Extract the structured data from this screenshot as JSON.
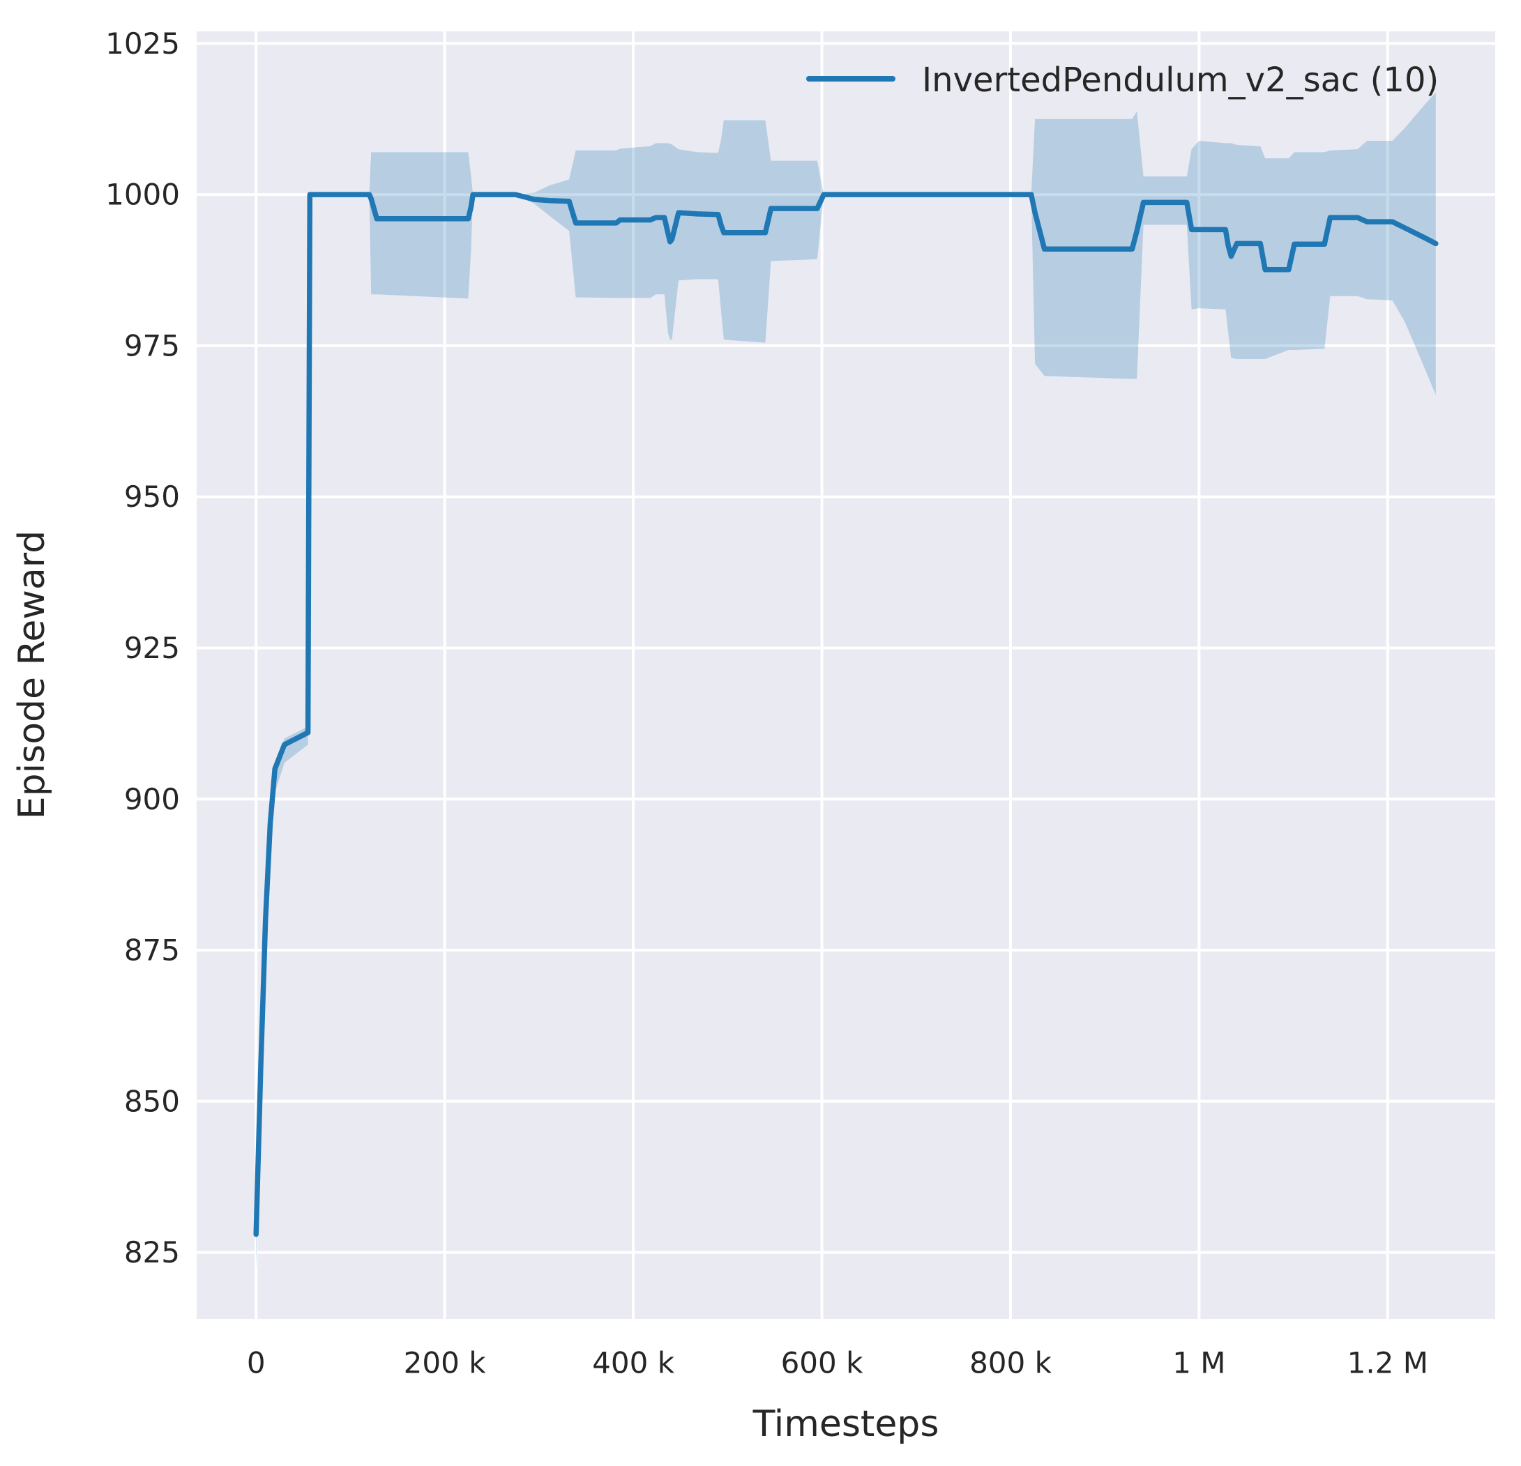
{
  "figure": {
    "background": "#ffffff"
  },
  "chart_data": {
    "type": "line",
    "title": "",
    "xlabel": "Timesteps",
    "ylabel": "Episode Reward",
    "grid": true,
    "grid_color": "#ffffff",
    "plot_background": "#eaeaf2",
    "text_color": "#262626",
    "xlim": [
      -63000,
      1314000
    ],
    "ylim": [
      814,
      1027
    ],
    "x_ticks": [
      {
        "v": 0,
        "label": "0"
      },
      {
        "v": 200000,
        "label": "200 k"
      },
      {
        "v": 400000,
        "label": "400 k"
      },
      {
        "v": 600000,
        "label": "600 k"
      },
      {
        "v": 800000,
        "label": "800 k"
      },
      {
        "v": 1000000,
        "label": "1 M"
      },
      {
        "v": 1200000,
        "label": "1.2 M"
      }
    ],
    "y_ticks": [
      {
        "v": 825,
        "label": "825"
      },
      {
        "v": 850,
        "label": "850"
      },
      {
        "v": 875,
        "label": "875"
      },
      {
        "v": 900,
        "label": "900"
      },
      {
        "v": 925,
        "label": "925"
      },
      {
        "v": 950,
        "label": "950"
      },
      {
        "v": 975,
        "label": "975"
      },
      {
        "v": 1000,
        "label": "1000"
      },
      {
        "v": 1025,
        "label": "1025"
      }
    ],
    "legend": {
      "position": "upper right",
      "frame": false,
      "entries": [
        {
          "label": "InvertedPendulum_v2_sac (10)",
          "color": "#1f77b4"
        }
      ]
    },
    "series": [
      {
        "name": "InvertedPendulum_v2_sac (10)",
        "color": "#1f77b4",
        "band_color": "rgba(31,119,180,0.25)",
        "line_width": 7.5,
        "x": [
          0,
          5000,
          10000,
          15000,
          20000,
          30000,
          55000,
          57000,
          120000,
          122000,
          128000,
          225000,
          228000,
          230000,
          275000,
          295000,
          311000,
          332000,
          339000,
          382000,
          386000,
          418000,
          424000,
          433000,
          437000,
          439000,
          441000,
          448000,
          468000,
          490000,
          493000,
          496000,
          540000,
          546000,
          595000,
          602000,
          822000,
          826000,
          836000,
          929000,
          934000,
          941000,
          987000,
          992000,
          1000000,
          1028000,
          1031000,
          1034000,
          1040000,
          1065000,
          1070000,
          1095000,
          1101000,
          1133000,
          1139000,
          1168000,
          1178000,
          1205000,
          1218000,
          1240000,
          1251000
        ],
        "mean": [
          828,
          856,
          880,
          896,
          905,
          909,
          911,
          1000,
          1000,
          999.3,
          996,
          996,
          998,
          1000,
          1000,
          999.2,
          999,
          998.9,
          995.3,
          995.3,
          995.8,
          995.8,
          996.2,
          996.2,
          993.5,
          992.2,
          992.6,
          997,
          996.8,
          996.7,
          995,
          993.7,
          993.7,
          997.7,
          997.7,
          1000,
          1000,
          997,
          991,
          991,
          994,
          998.7,
          998.7,
          994.2,
          994.2,
          994.2,
          991.5,
          989.8,
          991.9,
          991.9,
          987.6,
          987.6,
          991.8,
          991.8,
          996.2,
          996.2,
          995.5,
          995.5,
          994.5,
          992.8,
          991.9
        ],
        "band_upper": [
          833,
          858,
          882,
          898,
          906,
          910,
          912,
          1000,
          1000,
          1007,
          1007,
          1007,
          1003,
          1000,
          1000,
          1000.3,
          1001.5,
          1002.5,
          1007.3,
          1007.3,
          1007.6,
          1008,
          1008.5,
          1008.5,
          1008.5,
          1008.4,
          1008.3,
          1007.5,
          1007,
          1006.9,
          1009,
          1012.3,
          1012.3,
          1005.6,
          1005.6,
          1000,
          1000,
          1012.5,
          1012.5,
          1012.5,
          1013.8,
          1003,
          1003,
          1007.5,
          1008.9,
          1008.5,
          1008.5,
          1008.5,
          1008.2,
          1008,
          1006,
          1006,
          1007,
          1007,
          1007.3,
          1007.5,
          1008.9,
          1008.9,
          1011,
          1015,
          1016.9
        ],
        "band_lower": [
          822,
          850,
          875,
          892,
          901,
          906,
          909,
          1000,
          1000,
          983.5,
          983.5,
          982.8,
          991,
          1000,
          1000,
          998.5,
          996.5,
          994,
          983,
          982.9,
          982.9,
          982.9,
          983.5,
          983.5,
          977,
          976,
          976,
          985.8,
          986,
          986,
          981,
          976,
          975.5,
          989,
          989.3,
          1000,
          1000,
          972,
          970,
          969.5,
          969.5,
          995,
          995,
          981,
          981.2,
          981,
          977,
          973,
          972.8,
          972.8,
          972.8,
          974.3,
          974.3,
          974.5,
          983.2,
          983.2,
          982.7,
          982.5,
          979,
          971,
          966.8
        ]
      }
    ]
  }
}
